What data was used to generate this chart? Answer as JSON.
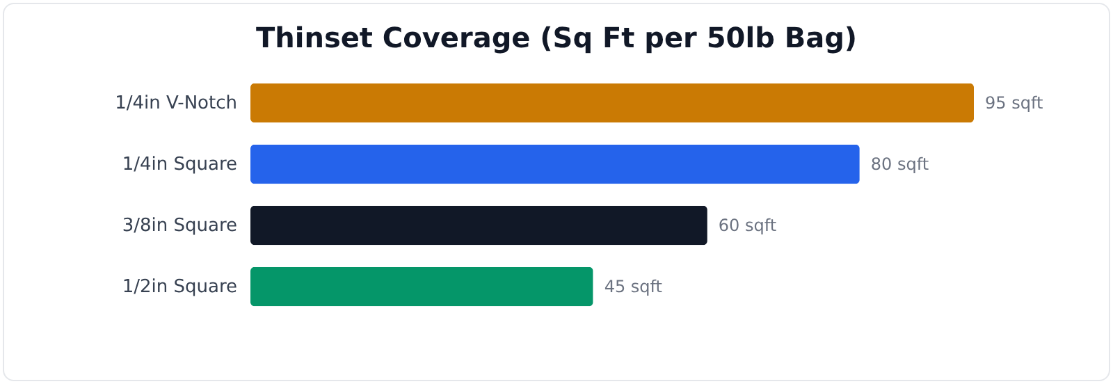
{
  "chart_data": {
    "type": "bar",
    "orientation": "horizontal",
    "title": "Thinset Coverage (Sq Ft per 50lb Bag)",
    "categories": [
      "1/4in V-Notch",
      "1/4in Square",
      "3/8in Square",
      "1/2in Square"
    ],
    "values": [
      95,
      80,
      60,
      45
    ],
    "colors": [
      "#ca7a04",
      "#2563eb",
      "#111827",
      "#059669"
    ],
    "value_labels": [
      "95 sqft",
      "80 sqft",
      "60 sqft",
      "45 sqft"
    ]
  }
}
